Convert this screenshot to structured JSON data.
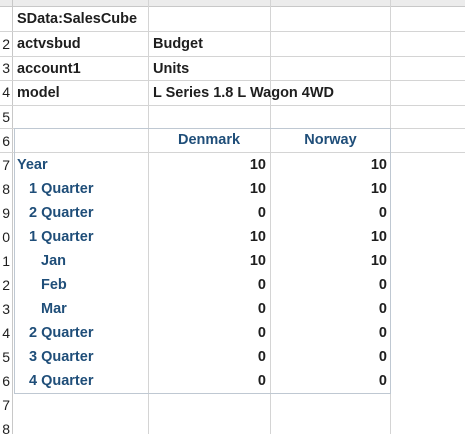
{
  "params": [
    {
      "label": "SData:SalesCube",
      "value": ""
    },
    {
      "label": "actvsbud",
      "value": "Budget"
    },
    {
      "label": "account1",
      "value": "Units"
    },
    {
      "label": "model",
      "value": "L Series 1.8 L Wagon 4WD"
    }
  ],
  "columns": [
    "Denmark",
    "Norway"
  ],
  "rows": [
    {
      "label": "Year",
      "denmark": "10",
      "norway": "10"
    },
    {
      "label": "1 Quarter",
      "denmark": "10",
      "norway": "10"
    },
    {
      "label": "2 Quarter",
      "denmark": "0",
      "norway": "0"
    },
    {
      "label": "1 Quarter",
      "denmark": "10",
      "norway": "10"
    },
    {
      "label": "Jan",
      "denmark": "10",
      "norway": "10"
    },
    {
      "label": "Feb",
      "denmark": "0",
      "norway": "0"
    },
    {
      "label": "Mar",
      "denmark": "0",
      "norway": "0"
    },
    {
      "label": "2 Quarter",
      "denmark": "0",
      "norway": "0"
    },
    {
      "label": "3 Quarter",
      "denmark": "0",
      "norway": "0"
    },
    {
      "label": "4 Quarter",
      "denmark": "0",
      "norway": "0"
    }
  ],
  "row_numbers": [
    "",
    "2",
    "3",
    "4",
    "5",
    "6",
    "7",
    "8",
    "9",
    "0",
    "1",
    "2",
    "3",
    "4",
    "5",
    "6",
    "7",
    "8"
  ]
}
